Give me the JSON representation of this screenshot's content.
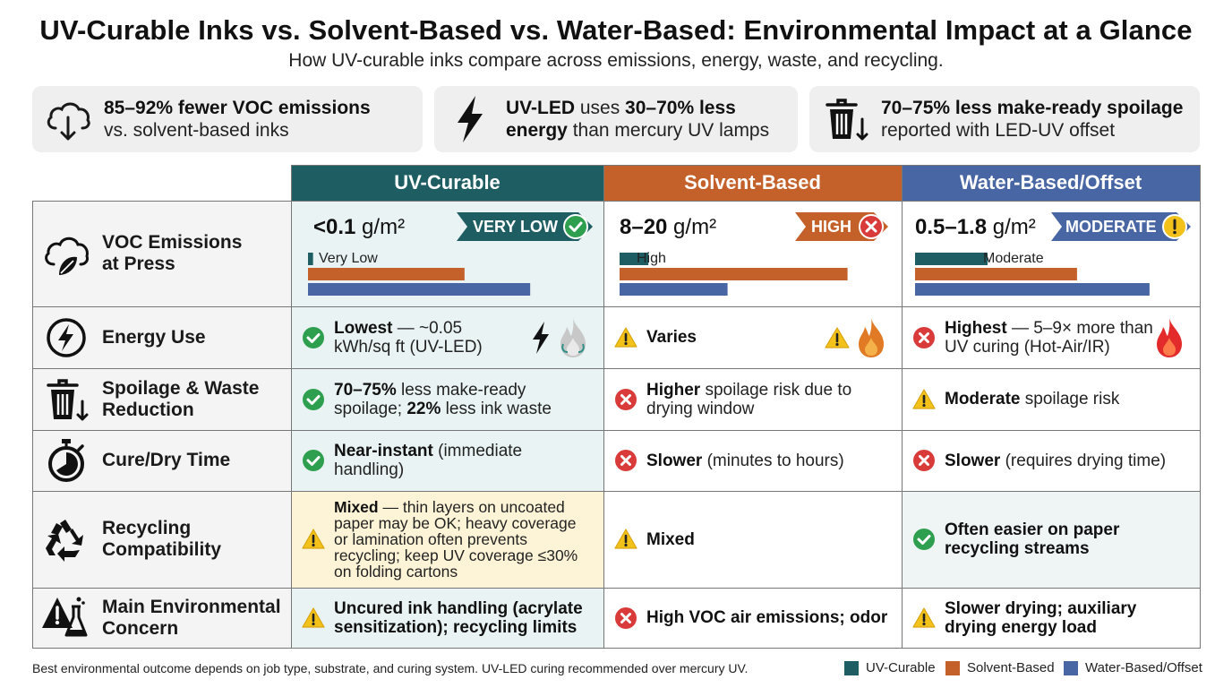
{
  "title": "UV-Curable Inks vs. Solvent-Based vs. Water-Based: Environmental Impact at a Glance",
  "subtitle": "How UV-curable inks compare across emissions, energy, waste, and recycling.",
  "colors": {
    "uv": "#1e5e63",
    "solvent": "#c4612a",
    "water": "#4866a3",
    "good": "#2e9e4f",
    "bad": "#d93a3a",
    "warn": "#f2c21b"
  },
  "cards": [
    {
      "icon": "cloud-download-icon",
      "bold": "85–92% fewer VOC emissions",
      "rest": "vs. solvent-based inks"
    },
    {
      "icon": "lightning-bolt-icon",
      "b1": "UV-LED",
      "t1": " uses ",
      "b2": "30–70% less",
      "b3": "energy",
      "t2": " than mercury UV lamps"
    },
    {
      "icon": "trash-down-icon",
      "bold": "70–75% less make-ready spoilage",
      "rest": "reported with LED-UV offset"
    }
  ],
  "columns": [
    "UV-Curable",
    "Solvent-Based",
    "Water-Based/Offset"
  ],
  "voc": {
    "label": "VOC Emissions at Press",
    "label_l1": "VOC Emissions",
    "label_l2": "at Press",
    "cells": [
      {
        "value": "<0.1",
        "unit": " g/m²",
        "badge": "VERY LOW",
        "level": "Very Low"
      },
      {
        "value": "8–20",
        "unit": " g/m²",
        "badge": "HIGH",
        "level": "High"
      },
      {
        "value": "0.5–1.8",
        "unit": " g/m²",
        "badge": "MODERATE",
        "level": "Moderate"
      }
    ]
  },
  "chart_data": {
    "type": "bar",
    "title": "",
    "categories": [
      "UV-Curable",
      "Solvent-Based",
      "Water-Based/Offset"
    ],
    "series": [
      {
        "name": "Very Low",
        "values": [
          0.02,
          0.12,
          0.3
        ]
      },
      {
        "name": "High",
        "values": [
          0.62,
          0.95,
          0.67
        ]
      },
      {
        "name": "Moderate",
        "values": [
          0.88,
          0.45,
          0.97
        ]
      }
    ],
    "xlim": [
      0,
      1
    ],
    "legend": [
      "UV-Curable",
      "Solvent-Based",
      "Water-Based/Offset"
    ]
  },
  "rows": [
    {
      "label_l1": "Energy Use",
      "label_l2": "",
      "icon": "energy-bolt-icon",
      "cells": [
        {
          "status": "good",
          "bold": "Lowest",
          "rest": " — ~0.05 kWh/sq ft (UV-LED)",
          "extra": [
            "bolt",
            "flame-gray"
          ]
        },
        {
          "status": "warn",
          "bold": "Varies",
          "rest": "",
          "extra": [
            "warn",
            "flame-orange"
          ]
        },
        {
          "status": "bad",
          "bold": "Highest",
          "rest": " — 5–9× more than UV curing (Hot-Air/IR)",
          "extra": [
            "flame-red"
          ]
        }
      ]
    },
    {
      "label_l1": "Spoilage & Waste",
      "label_l2": "Reduction",
      "icon": "trash-down-icon",
      "cells": [
        {
          "status": "good",
          "bold": "70–75%",
          "rest": " less make-ready spoilage; ",
          "bold2": "22%",
          "rest2": " less ink waste"
        },
        {
          "status": "bad",
          "bold": "Higher",
          "rest": " spoilage risk due to drying window"
        },
        {
          "status": "warn",
          "bold": "Moderate",
          "rest": " spoilage risk"
        }
      ]
    },
    {
      "label_l1": "Cure/Dry Time",
      "label_l2": "",
      "icon": "stopwatch-icon",
      "cells": [
        {
          "status": "good",
          "bold": "Near-instant",
          "rest": " (immediate handling)"
        },
        {
          "status": "bad",
          "bold": "Slower",
          "rest": " (minutes to hours)"
        },
        {
          "status": "bad",
          "bold": "Slower",
          "rest": " (requires drying time)"
        }
      ]
    },
    {
      "label_l1": "Recycling",
      "label_l2": "Compatibility",
      "icon": "recycle-icon",
      "cells": [
        {
          "status": "warn",
          "bold": "Mixed",
          "rest": " — thin layers on uncoated paper may be OK; heavy coverage or lamination often prevents recycling; keep UV coverage ≤30% on folding cartons"
        },
        {
          "status": "warn",
          "bold": "Mixed",
          "rest": ""
        },
        {
          "status": "good",
          "bold": "Often easier on paper recycling streams",
          "rest": ""
        }
      ]
    },
    {
      "label_l1": "Main Environmental",
      "label_l2": "Concern",
      "icon": "hazard-flask-icon",
      "cells": [
        {
          "status": "warn",
          "bold": "Uncured ink handling (acrylate sensitization); recycling limits",
          "rest": ""
        },
        {
          "status": "bad",
          "bold": "High VOC air emissions; odor",
          "rest": ""
        },
        {
          "status": "warn",
          "bold": "Slower drying; auxiliary drying energy load",
          "rest": ""
        }
      ]
    }
  ],
  "footer": "Best environmental outcome depends on job type, substrate, and curing system. UV-LED curing recommended over mercury UV.",
  "legend": [
    "UV-Curable",
    "Solvent-Based",
    "Water-Based/Offset"
  ]
}
